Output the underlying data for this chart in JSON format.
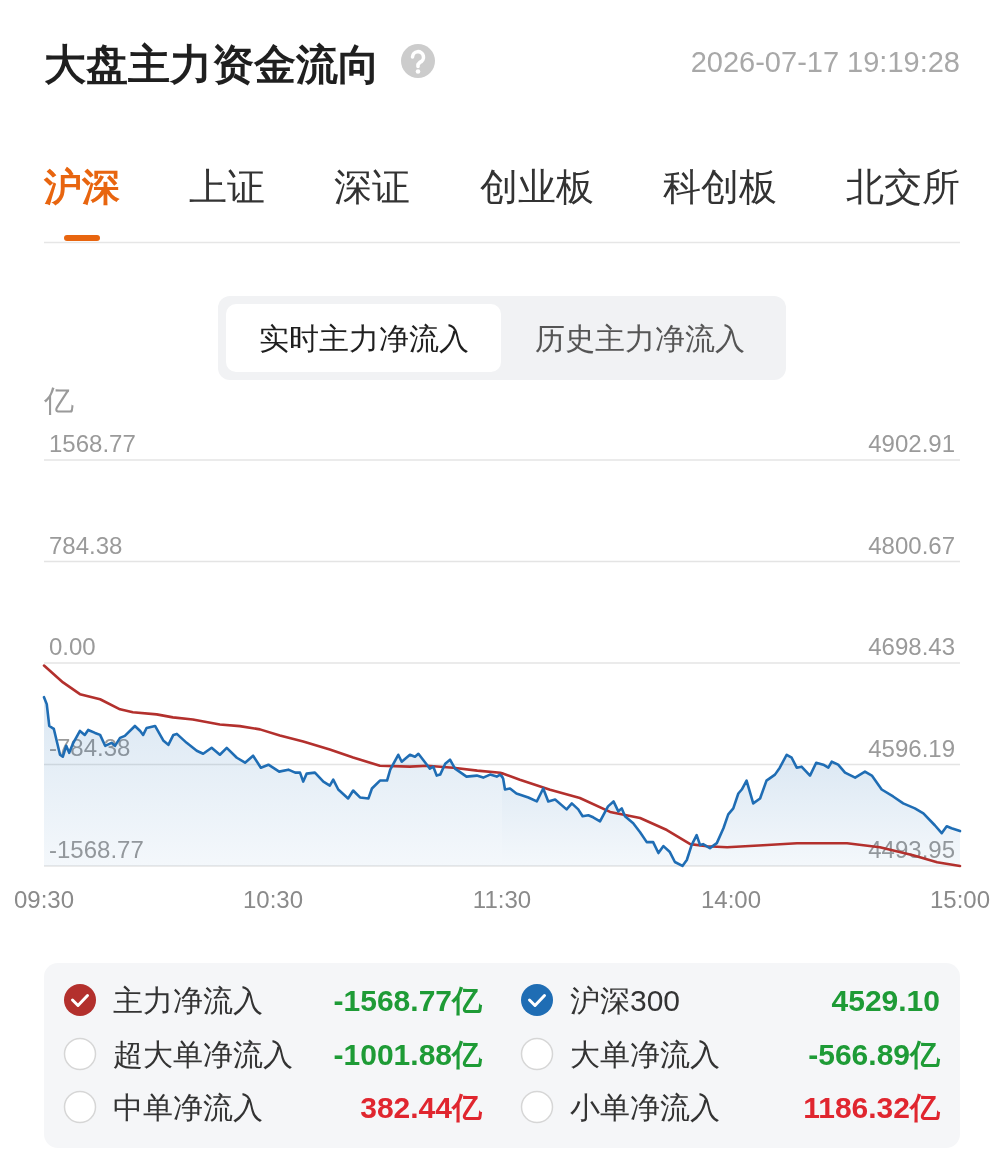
{
  "chart_data": [
    {
      "type": "line",
      "title": "大盘主力资金流向",
      "ylabel": "亿",
      "xlim": [
        9.5,
        11.5
      ],
      "xticks": [
        {
          "value": 9.5,
          "label": "09:30"
        },
        {
          "value": 10.5,
          "label": "10:30"
        },
        {
          "value": 11.5,
          "label": "11:30"
        }
      ],
      "ylim": [
        -1568.77,
        1568.77
      ],
      "yticks": [
        -1568.77,
        -784.38,
        {
          "value": 0,
          "label": "0.00"
        },
        784.38,
        1568.77
      ],
      "y2lim": [
        4493.95,
        4902.91
      ],
      "grid": "y",
      "legend": "bottom",
      "series": [
        {
          "name": "主力净流入",
          "color": "#b3302d",
          "x": [
            9.5,
            9.583,
            9.657,
            9.745,
            9.832,
            9.888,
            9.992,
            10.063,
            10.15,
            10.268,
            10.355,
            10.443,
            10.53,
            10.632,
            10.748,
            10.85,
            10.967,
            11.098,
            11.173,
            11.287,
            11.392,
            11.492,
            11.5
          ],
          "values": [
            -20,
            -150,
            -241,
            -280,
            -358,
            -381,
            -397,
            -420,
            -436,
            -475,
            -488,
            -513,
            -560,
            -607,
            -669,
            -731,
            -794,
            -801,
            -794,
            -809,
            -832,
            -848,
            -852
          ]
        },
        {
          "name": "沪深300",
          "type": "area",
          "axis": "y2",
          "color": "#1f6db4",
          "x": [
            9.5,
            9.512,
            9.523,
            9.543,
            9.57,
            9.582,
            9.597,
            9.61,
            9.628,
            9.657,
            9.678,
            9.693,
            9.723,
            9.745,
            9.767,
            9.795,
            9.81,
            9.832,
            9.853,
            9.897,
            9.92,
            9.933,
            9.948,
            9.985,
            10.022,
            10.043,
            10.065,
            10.08,
            10.123,
            10.167,
            10.195,
            10.232,
            10.268,
            10.298,
            10.342,
            10.378,
            10.413,
            10.447,
            10.48,
            10.527,
            10.567,
            10.597,
            10.618,
            10.632,
            10.647,
            10.683,
            10.72,
            10.748,
            10.763,
            10.785,
            10.828,
            10.85,
            10.88,
            10.917,
            10.932,
            10.967,
            10.998,
            11.012,
            11.047,
            11.062,
            11.098,
            11.12,
            11.135,
            11.172,
            11.185,
            11.2,
            11.215,
            11.23,
            11.252,
            11.273,
            11.295,
            11.345,
            11.39,
            11.418,
            11.448,
            11.477,
            11.492,
            11.5
          ],
          "values": [
            4664,
            4657,
            4635,
            4632,
            4606,
            4604,
            4615,
            4608,
            4618,
            4630,
            4626,
            4631,
            4628,
            4626,
            4615,
            4618,
            4615,
            4623,
            4625,
            4635,
            4630,
            4626,
            4633,
            4635,
            4620,
            4616,
            4626,
            4627,
            4618,
            4610,
            4607,
            4613,
            4606,
            4613,
            4603,
            4598,
            4605,
            4593,
            4596,
            4589,
            4591,
            4588,
            4588,
            4579,
            4587,
            4588,
            4579,
            4575,
            4581,
            4571,
            4562,
            4570,
            4563,
            4562,
            4572,
            4580,
            4580,
            4591,
            4606,
            4599,
            4606,
            4604,
            4607,
            4596,
            4592,
            4594,
            4585,
            4586,
            4597,
            4601,
            4592,
            4584,
            4585,
            4583,
            4586,
            4584,
            4586,
            4584
          ]
        }
      ],
      "annotations": [
        "沪深",
        "上证",
        "深证",
        "创业板",
        "科创板",
        "北交所",
        "实时主力净流入",
        "历史主力净流入",
        "-1568.77亿",
        "4529.10",
        "超大单净流入",
        "-1001.88亿",
        "大单净流入",
        "-566.89亿",
        "中单净流入",
        "382.44亿",
        "小单净流入",
        "1186.32亿"
      ]
    },
    {
      "type": "line",
      "subtitle": "2026-07-17 19:19:28",
      "xlim": [
        13,
        15
      ],
      "xticks": [
        {
          "value": 14,
          "label": "14:00"
        },
        {
          "value": 15,
          "label": "15:00"
        }
      ],
      "ylim": [
        -1568.77,
        1568.77
      ],
      "y2lim": [
        4493.95,
        4902.91
      ],
      "y2ticks": [
        4493.95,
        4596.19,
        4698.43,
        4800.67,
        4902.91
      ],
      "grid": "y",
      "series": [
        {
          "color": "#b3302d",
          "x": [
            13,
            13.078,
            13.21,
            13.34,
            13.472,
            13.603,
            13.72,
            13.822,
            13.895,
            13.983,
            14.14,
            14.288,
            14.507,
            14.65,
            14.795,
            14.9,
            15
          ],
          "values": [
            -852,
            -902,
            -980,
            -1043,
            -1151,
            -1198,
            -1291,
            -1400,
            -1416,
            -1424,
            -1408,
            -1393,
            -1393,
            -1424,
            -1486,
            -1540,
            -1568.77
          ]
        },
        {
          "type": "area",
          "axis": "y2",
          "color": "#1f6db4",
          "x": [
            13,
            13.005,
            13.013,
            13.035,
            13.063,
            13.115,
            13.152,
            13.18,
            13.202,
            13.232,
            13.282,
            13.305,
            13.333,
            13.352,
            13.377,
            13.398,
            13.428,
            13.463,
            13.487,
            13.508,
            13.523,
            13.537,
            13.573,
            13.603,
            13.632,
            13.66,
            13.683,
            13.705,
            13.733,
            13.755,
            13.788,
            13.807,
            13.828,
            13.85,
            13.865,
            13.878,
            13.908,
            13.938,
            13.967,
            13.988,
            14.01,
            14.032,
            14.047,
            14.068,
            14.097,
            14.127,
            14.155,
            14.192,
            14.213,
            14.243,
            14.265,
            14.287,
            14.308,
            14.345,
            14.372,
            14.403,
            14.425,
            14.44,
            14.468,
            14.498,
            14.542,
            14.585,
            14.615,
            14.658,
            14.708,
            14.752,
            14.803,
            14.84,
            14.89,
            14.92,
            14.942,
            14.963,
            15
          ],
          "values": [
            4584,
            4582,
            4571,
            4572,
            4567,
            4563,
            4559,
            4572,
            4559,
            4561,
            4551,
            4557,
            4551,
            4544,
            4545,
            4543,
            4539,
            4554,
            4559,
            4549,
            4552,
            4544,
            4537,
            4528,
            4518,
            4518,
            4507,
            4514,
            4508,
            4498,
            4494,
            4500,
            4515,
            4525,
            4515,
            4516,
            4512,
            4517,
            4532,
            4546,
            4552,
            4567,
            4571,
            4580,
            4557,
            4562,
            4580,
            4586,
            4593,
            4606,
            4603,
            4593,
            4594,
            4585,
            4598,
            4596,
            4593,
            4599,
            4596,
            4588,
            4583,
            4589,
            4585,
            4571,
            4564,
            4557,
            4552,
            4547,
            4535,
            4527,
            4534,
            4532,
            4529.1
          ]
        }
      ]
    }
  ]
}
